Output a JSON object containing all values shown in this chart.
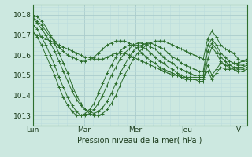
{
  "bg_color": "#cce8e0",
  "grid_color_major": "#aacccc",
  "grid_color_minor": "#bbdddd",
  "line_color": "#2d6e2d",
  "xlabel": "Pression niveau de la mer( hPa )",
  "ylim": [
    1012.5,
    1018.5
  ],
  "yticks": [
    1013,
    1014,
    1015,
    1016,
    1017,
    1018
  ],
  "xtick_labels": [
    "Lun",
    "Mar",
    "Mer",
    "Jeu",
    "V"
  ],
  "xtick_positions": [
    0,
    24,
    48,
    72,
    96
  ],
  "total_hours": 100,
  "series": [
    [
      1018.0,
      1017.9,
      1017.7,
      1017.4,
      1017.0,
      1016.6,
      1016.1,
      1015.6,
      1015.1,
      1014.5,
      1014.0,
      1013.6,
      1013.3,
      1013.1,
      1013.0,
      1013.0,
      1013.1,
      1013.3,
      1013.6,
      1014.0,
      1014.5,
      1015.0,
      1015.4,
      1015.8,
      1016.1,
      1016.3,
      1016.5,
      1016.6,
      1016.7,
      1016.7,
      1016.7,
      1016.6,
      1016.5,
      1016.4,
      1016.3,
      1016.2,
      1016.1,
      1016.0,
      1015.9,
      1015.8,
      1016.8,
      1017.2,
      1016.9,
      1016.5,
      1016.3,
      1016.2,
      1016.1,
      1015.8,
      1015.7,
      1015.8
    ],
    [
      1017.8,
      1017.6,
      1017.3,
      1017.0,
      1016.6,
      1016.2,
      1015.7,
      1015.2,
      1014.7,
      1014.2,
      1013.8,
      1013.5,
      1013.3,
      1013.2,
      1013.1,
      1013.2,
      1013.4,
      1013.7,
      1014.1,
      1014.6,
      1015.1,
      1015.5,
      1015.9,
      1016.2,
      1016.4,
      1016.5,
      1016.6,
      1016.6,
      1016.5,
      1016.4,
      1016.3,
      1016.1,
      1015.9,
      1015.8,
      1015.6,
      1015.5,
      1015.4,
      1015.3,
      1015.2,
      1015.2,
      1016.5,
      1016.8,
      1016.5,
      1016.1,
      1015.9,
      1015.7,
      1015.6,
      1015.5,
      1015.5,
      1015.6
    ],
    [
      1017.5,
      1017.3,
      1016.9,
      1016.5,
      1016.0,
      1015.5,
      1014.9,
      1014.4,
      1013.9,
      1013.5,
      1013.2,
      1013.0,
      1013.0,
      1013.1,
      1013.3,
      1013.6,
      1014.0,
      1014.5,
      1015.0,
      1015.4,
      1015.8,
      1016.1,
      1016.3,
      1016.5,
      1016.6,
      1016.6,
      1016.5,
      1016.4,
      1016.3,
      1016.1,
      1015.9,
      1015.7,
      1015.6,
      1015.4,
      1015.3,
      1015.2,
      1015.1,
      1015.0,
      1015.0,
      1015.0,
      1016.2,
      1016.6,
      1016.3,
      1015.9,
      1015.7,
      1015.5,
      1015.4,
      1015.3,
      1015.3,
      1015.4
    ],
    [
      1017.2,
      1016.9,
      1016.5,
      1016.0,
      1015.5,
      1015.0,
      1014.4,
      1013.9,
      1013.5,
      1013.2,
      1013.0,
      1013.0,
      1013.1,
      1013.3,
      1013.6,
      1014.1,
      1014.6,
      1015.1,
      1015.5,
      1015.9,
      1016.2,
      1016.4,
      1016.5,
      1016.5,
      1016.5,
      1016.4,
      1016.3,
      1016.1,
      1015.9,
      1015.7,
      1015.6,
      1015.4,
      1015.3,
      1015.1,
      1015.0,
      1014.9,
      1014.8,
      1014.8,
      1014.7,
      1014.7,
      1015.8,
      1016.4,
      1016.1,
      1015.7,
      1015.5,
      1015.4,
      1015.3,
      1015.2,
      1015.2,
      1015.3
    ],
    [
      1017.9,
      1017.7,
      1017.5,
      1017.2,
      1016.9,
      1016.7,
      1016.4,
      1016.2,
      1016.0,
      1015.9,
      1015.8,
      1015.7,
      1015.7,
      1015.8,
      1015.9,
      1016.1,
      1016.3,
      1016.5,
      1016.6,
      1016.7,
      1016.7,
      1016.7,
      1016.6,
      1016.5,
      1016.3,
      1016.1,
      1015.9,
      1015.7,
      1015.6,
      1015.4,
      1015.3,
      1015.2,
      1015.1,
      1015.0,
      1014.9,
      1014.8,
      1014.8,
      1014.8,
      1014.8,
      1014.8,
      1015.5,
      1015.0,
      1015.3,
      1015.6,
      1015.5,
      1015.5,
      1015.6,
      1015.6,
      1015.7,
      1015.7
    ],
    [
      1017.1,
      1017.0,
      1016.9,
      1016.8,
      1016.7,
      1016.6,
      1016.5,
      1016.4,
      1016.3,
      1016.2,
      1016.1,
      1016.0,
      1015.9,
      1015.9,
      1015.8,
      1015.8,
      1015.8,
      1015.9,
      1016.0,
      1016.1,
      1016.1,
      1016.1,
      1016.0,
      1015.9,
      1015.8,
      1015.7,
      1015.6,
      1015.5,
      1015.4,
      1015.3,
      1015.2,
      1015.1,
      1015.0,
      1015.0,
      1014.9,
      1014.9,
      1014.9,
      1014.9,
      1014.9,
      1014.9,
      1015.2,
      1014.8,
      1015.1,
      1015.4,
      1015.3,
      1015.3,
      1015.4,
      1015.4,
      1015.4,
      1015.5
    ]
  ]
}
